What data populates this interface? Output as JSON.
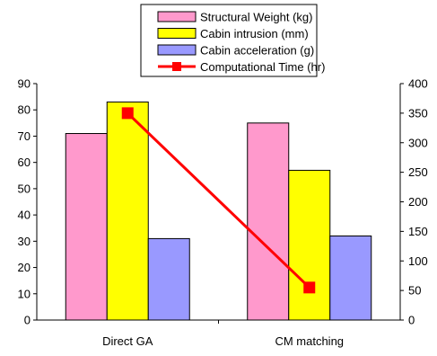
{
  "chart_data": {
    "type": "bar",
    "categories": [
      "Direct GA",
      "CM matching"
    ],
    "series": [
      {
        "name": "Structural Weight (kg)",
        "type": "bar",
        "axis": "left",
        "color": "#ff99cc",
        "values": [
          71,
          75
        ]
      },
      {
        "name": "Cabin intrusion (mm)",
        "type": "bar",
        "axis": "left",
        "color": "#ffff00",
        "values": [
          83,
          57
        ]
      },
      {
        "name": "Cabin acceleration (g)",
        "type": "bar",
        "axis": "left",
        "color": "#9999ff",
        "values": [
          31,
          32
        ]
      },
      {
        "name": "Computational Time (hr)",
        "type": "line",
        "axis": "right",
        "color": "#ff0000",
        "marker": "square",
        "values": [
          350,
          55
        ]
      }
    ],
    "y_left": {
      "min": 0,
      "max": 90,
      "step": 10,
      "ticks": [
        "0",
        "10",
        "20",
        "30",
        "40",
        "50",
        "60",
        "70",
        "80",
        "90"
      ]
    },
    "y_right": {
      "min": 0,
      "max": 400,
      "step": 50,
      "ticks": [
        "0",
        "50",
        "100",
        "150",
        "200",
        "250",
        "300",
        "350",
        "400"
      ]
    },
    "title": "",
    "xlabel": "",
    "ylabel": "",
    "grid": false,
    "legend_position": "top-center"
  }
}
